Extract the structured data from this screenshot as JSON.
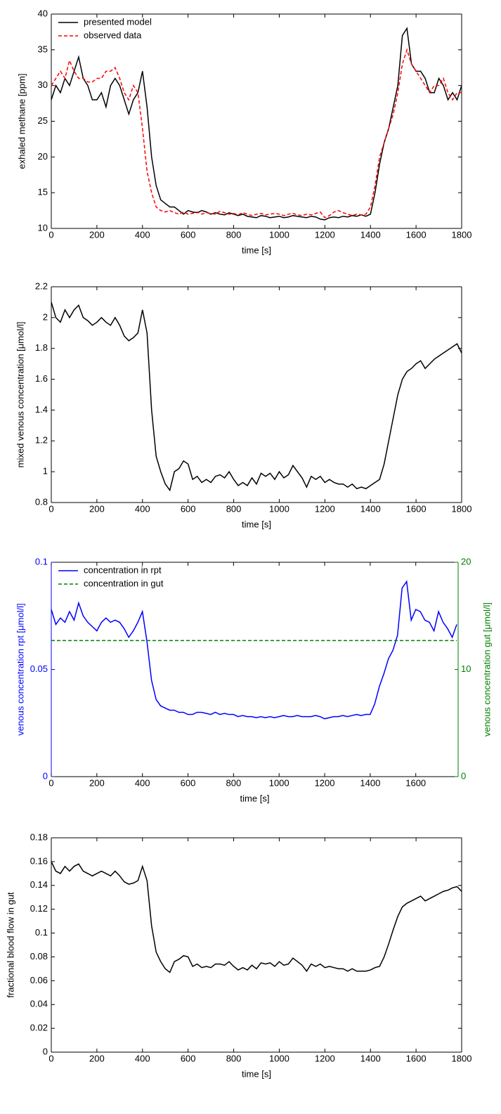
{
  "chart_data": [
    {
      "type": "line",
      "xlabel": "time [s]",
      "ylabel": "exhaled methane [ppm]",
      "legend": "upper left",
      "xlim": [
        0,
        1800
      ],
      "ylim": [
        10,
        40
      ],
      "xticks": [
        0,
        200,
        400,
        600,
        800,
        1000,
        1200,
        1400,
        1600,
        1800
      ],
      "yticks": [
        10,
        15,
        20,
        25,
        30,
        35,
        40
      ],
      "x": [
        0,
        20,
        40,
        60,
        80,
        100,
        120,
        140,
        160,
        180,
        200,
        220,
        240,
        260,
        280,
        300,
        320,
        340,
        360,
        380,
        400,
        420,
        440,
        460,
        480,
        500,
        520,
        540,
        560,
        580,
        600,
        620,
        640,
        660,
        680,
        700,
        720,
        740,
        760,
        780,
        800,
        820,
        840,
        860,
        880,
        900,
        920,
        940,
        960,
        980,
        1000,
        1020,
        1040,
        1060,
        1080,
        1100,
        1120,
        1140,
        1160,
        1180,
        1200,
        1220,
        1240,
        1260,
        1280,
        1300,
        1320,
        1340,
        1360,
        1380,
        1400,
        1420,
        1440,
        1460,
        1480,
        1500,
        1520,
        1540,
        1560,
        1580,
        1600,
        1620,
        1640,
        1660,
        1680,
        1700,
        1720,
        1740,
        1760,
        1780,
        1800
      ],
      "series": [
        {
          "name": "presented model",
          "color": "#000000",
          "linestyle": "solid",
          "values": [
            28,
            30,
            29,
            31,
            30,
            32,
            34,
            31,
            30,
            28,
            28,
            29,
            27,
            30,
            31,
            30,
            28,
            26,
            28,
            29,
            32,
            27,
            20,
            16,
            14,
            13.5,
            13,
            13,
            12.5,
            12,
            12.5,
            12.3,
            12.2,
            12.5,
            12.3,
            12,
            12.2,
            12,
            11.9,
            12.2,
            12,
            11.8,
            12,
            11.7,
            11.6,
            11.5,
            11.8,
            11.7,
            11.5,
            11.6,
            11.7,
            11.5,
            11.6,
            11.8,
            11.7,
            11.6,
            11.5,
            11.7,
            11.6,
            11.3,
            11.2,
            11.5,
            11.6,
            11.5,
            11.7,
            11.6,
            11.8,
            11.7,
            11.9,
            11.7,
            12,
            15,
            19,
            22,
            24,
            27,
            30,
            37,
            38,
            33,
            32,
            32,
            31,
            29,
            29,
            31,
            30,
            28,
            29,
            28,
            30
          ]
        },
        {
          "name": "observed data",
          "color": "#ff0000",
          "linestyle": "dashed",
          "values": [
            30,
            31,
            32,
            31,
            33.5,
            32,
            31,
            31,
            30.5,
            30.5,
            31,
            31,
            32,
            32,
            32.5,
            31,
            29,
            28,
            30,
            29,
            24,
            18,
            15,
            13,
            12.5,
            12.3,
            12.5,
            12.2,
            12,
            12.3,
            12,
            12.1,
            12.3,
            12,
            12.2,
            12.1,
            12,
            12.4,
            12.2,
            12,
            12.1,
            11.9,
            12.2,
            12,
            11.8,
            12,
            12.1,
            11.9,
            12,
            12.1,
            12,
            11.8,
            12,
            12.1,
            11.9,
            11.8,
            12,
            11.9,
            12.1,
            12.3,
            11.5,
            11.8,
            12.3,
            12.5,
            12.2,
            12,
            11.8,
            12,
            11.9,
            12,
            13,
            16,
            20,
            22,
            24,
            26,
            29,
            33,
            35,
            33,
            32,
            31,
            30,
            29,
            30,
            30,
            31,
            29,
            28,
            29,
            29
          ]
        }
      ]
    },
    {
      "type": "line",
      "xlabel": "time [s]",
      "ylabel": "mixed venous concentration [μmol/l]",
      "xlim": [
        0,
        1800
      ],
      "ylim": [
        0.8,
        2.2
      ],
      "xticks": [
        0,
        200,
        400,
        600,
        800,
        1000,
        1200,
        1400,
        1600,
        1800
      ],
      "yticks": [
        0.8,
        1,
        1.2,
        1.4,
        1.6,
        1.8,
        2,
        2.2
      ],
      "x": [
        0,
        20,
        40,
        60,
        80,
        100,
        120,
        140,
        160,
        180,
        200,
        220,
        240,
        260,
        280,
        300,
        320,
        340,
        360,
        380,
        400,
        420,
        440,
        460,
        480,
        500,
        520,
        540,
        560,
        580,
        600,
        620,
        640,
        660,
        680,
        700,
        720,
        740,
        760,
        780,
        800,
        820,
        840,
        860,
        880,
        900,
        920,
        940,
        960,
        980,
        1000,
        1020,
        1040,
        1060,
        1080,
        1100,
        1120,
        1140,
        1160,
        1180,
        1200,
        1220,
        1240,
        1260,
        1280,
        1300,
        1320,
        1340,
        1360,
        1380,
        1400,
        1420,
        1440,
        1460,
        1480,
        1500,
        1520,
        1540,
        1560,
        1580,
        1600,
        1620,
        1640,
        1660,
        1680,
        1700,
        1720,
        1740,
        1760,
        1780,
        1800
      ],
      "series": [
        {
          "color": "#000000",
          "linestyle": "solid",
          "values": [
            2.1,
            2.0,
            1.97,
            2.05,
            2.0,
            2.05,
            2.08,
            2.0,
            1.98,
            1.95,
            1.97,
            2.0,
            1.97,
            1.95,
            2.0,
            1.95,
            1.88,
            1.85,
            1.87,
            1.9,
            2.05,
            1.9,
            1.4,
            1.1,
            1.0,
            0.92,
            0.88,
            1.0,
            1.02,
            1.07,
            1.05,
            0.95,
            0.97,
            0.93,
            0.95,
            0.93,
            0.97,
            0.98,
            0.96,
            1.0,
            0.95,
            0.91,
            0.93,
            0.91,
            0.96,
            0.92,
            0.99,
            0.97,
            0.99,
            0.95,
            1.0,
            0.96,
            0.98,
            1.04,
            1.0,
            0.96,
            0.9,
            0.97,
            0.95,
            0.97,
            0.93,
            0.95,
            0.93,
            0.92,
            0.92,
            0.9,
            0.92,
            0.89,
            0.9,
            0.89,
            0.91,
            0.93,
            0.95,
            1.05,
            1.2,
            1.35,
            1.5,
            1.6,
            1.65,
            1.67,
            1.7,
            1.72,
            1.67,
            1.7,
            1.73,
            1.75,
            1.77,
            1.79,
            1.81,
            1.83,
            1.77
          ]
        }
      ]
    },
    {
      "type": "line",
      "xlabel": "time [s]",
      "ylabel": "venous concentration rpt [μmol/l]",
      "y2label": "venous concentration gut [μmol/l]",
      "legend": "upper left",
      "xlim": [
        0,
        1786
      ],
      "ylim": [
        0,
        0.1
      ],
      "y2lim": [
        0,
        20
      ],
      "xticks": [
        0,
        200,
        400,
        600,
        800,
        1000,
        1200,
        1400,
        1600
      ],
      "yticks": [
        0,
        0.05,
        0.1
      ],
      "y2ticks": [
        0,
        10,
        20
      ],
      "x": [
        0,
        20,
        40,
        60,
        80,
        100,
        120,
        140,
        160,
        180,
        200,
        220,
        240,
        260,
        280,
        300,
        320,
        340,
        360,
        380,
        400,
        420,
        440,
        460,
        480,
        500,
        520,
        540,
        560,
        580,
        600,
        620,
        640,
        660,
        680,
        700,
        720,
        740,
        760,
        780,
        800,
        820,
        840,
        860,
        880,
        900,
        920,
        940,
        960,
        980,
        1000,
        1020,
        1040,
        1060,
        1080,
        1100,
        1120,
        1140,
        1160,
        1180,
        1200,
        1220,
        1240,
        1260,
        1280,
        1300,
        1320,
        1340,
        1360,
        1380,
        1400,
        1420,
        1440,
        1460,
        1480,
        1500,
        1520,
        1540,
        1560,
        1580,
        1600,
        1620,
        1640,
        1660,
        1680,
        1700,
        1720,
        1740,
        1760,
        1780
      ],
      "series": [
        {
          "name": "concentration in rpt",
          "color": "#0000ff",
          "linestyle": "solid",
          "values": [
            0.078,
            0.071,
            0.074,
            0.072,
            0.077,
            0.073,
            0.081,
            0.075,
            0.072,
            0.07,
            0.068,
            0.072,
            0.074,
            0.072,
            0.073,
            0.072,
            0.069,
            0.065,
            0.068,
            0.072,
            0.077,
            0.063,
            0.045,
            0.036,
            0.033,
            0.032,
            0.031,
            0.031,
            0.03,
            0.03,
            0.029,
            0.029,
            0.03,
            0.03,
            0.0295,
            0.029,
            0.03,
            0.029,
            0.0295,
            0.029,
            0.029,
            0.028,
            0.0285,
            0.028,
            0.028,
            0.0275,
            0.028,
            0.0275,
            0.028,
            0.0275,
            0.028,
            0.0285,
            0.028,
            0.028,
            0.0285,
            0.028,
            0.028,
            0.028,
            0.0285,
            0.028,
            0.027,
            0.0275,
            0.028,
            0.028,
            0.0285,
            0.028,
            0.0285,
            0.029,
            0.0285,
            0.029,
            0.029,
            0.034,
            0.042,
            0.048,
            0.055,
            0.059,
            0.066,
            0.088,
            0.091,
            0.073,
            0.078,
            0.077,
            0.073,
            0.072,
            0.068,
            0.077,
            0.072,
            0.069,
            0.065,
            0.071
          ]
        },
        {
          "name": "concentration in gut",
          "color": "#008000",
          "linestyle": "dashed",
          "axis": "y2",
          "values": [
            12.7,
            12.7,
            12.7,
            12.7,
            12.7,
            12.7,
            12.7,
            12.7,
            12.7,
            12.7,
            12.7,
            12.7,
            12.7,
            12.7,
            12.7,
            12.7,
            12.7,
            12.7,
            12.7,
            12.7,
            12.7,
            12.7,
            12.7,
            12.7,
            12.7,
            12.7,
            12.7,
            12.7,
            12.7,
            12.7,
            12.7,
            12.7,
            12.7,
            12.7,
            12.7,
            12.7,
            12.7,
            12.7,
            12.7,
            12.7,
            12.7,
            12.7,
            12.7,
            12.7,
            12.7,
            12.7,
            12.7,
            12.7,
            12.7,
            12.7,
            12.7,
            12.7,
            12.7,
            12.7,
            12.7,
            12.7,
            12.7,
            12.7,
            12.7,
            12.7,
            12.7,
            12.7,
            12.7,
            12.7,
            12.7,
            12.7,
            12.7,
            12.7,
            12.7,
            12.7,
            12.7,
            12.7,
            12.7,
            12.7,
            12.7,
            12.7,
            12.7,
            12.7,
            12.7,
            12.7,
            12.7,
            12.7,
            12.7,
            12.7,
            12.7,
            12.7,
            12.7,
            12.7,
            12.7,
            12.7
          ]
        }
      ]
    },
    {
      "type": "line",
      "xlabel": "time [s]",
      "ylabel": "fractional blood flow in gut",
      "xlim": [
        0,
        1800
      ],
      "ylim": [
        0,
        0.18
      ],
      "xticks": [
        0,
        200,
        400,
        600,
        800,
        1000,
        1200,
        1400,
        1600,
        1800
      ],
      "yticks": [
        0,
        0.02,
        0.04,
        0.06,
        0.08,
        0.1,
        0.12,
        0.14,
        0.16,
        0.18
      ],
      "x": [
        0,
        20,
        40,
        60,
        80,
        100,
        120,
        140,
        160,
        180,
        200,
        220,
        240,
        260,
        280,
        300,
        320,
        340,
        360,
        380,
        400,
        420,
        440,
        460,
        480,
        500,
        520,
        540,
        560,
        580,
        600,
        620,
        640,
        660,
        680,
        700,
        720,
        740,
        760,
        780,
        800,
        820,
        840,
        860,
        880,
        900,
        920,
        940,
        960,
        980,
        1000,
        1020,
        1040,
        1060,
        1080,
        1100,
        1120,
        1140,
        1160,
        1180,
        1200,
        1220,
        1240,
        1260,
        1280,
        1300,
        1320,
        1340,
        1360,
        1380,
        1400,
        1420,
        1440,
        1460,
        1480,
        1500,
        1520,
        1540,
        1560,
        1580,
        1600,
        1620,
        1640,
        1660,
        1680,
        1700,
        1720,
        1740,
        1760,
        1780,
        1800
      ],
      "series": [
        {
          "color": "#000000",
          "linestyle": "solid",
          "values": [
            0.16,
            0.152,
            0.15,
            0.156,
            0.152,
            0.156,
            0.158,
            0.152,
            0.15,
            0.148,
            0.15,
            0.152,
            0.15,
            0.148,
            0.152,
            0.148,
            0.143,
            0.141,
            0.142,
            0.144,
            0.156,
            0.144,
            0.106,
            0.084,
            0.076,
            0.07,
            0.067,
            0.076,
            0.078,
            0.081,
            0.08,
            0.072,
            0.074,
            0.071,
            0.072,
            0.071,
            0.074,
            0.074,
            0.073,
            0.076,
            0.072,
            0.069,
            0.071,
            0.069,
            0.073,
            0.07,
            0.075,
            0.074,
            0.075,
            0.072,
            0.076,
            0.073,
            0.074,
            0.079,
            0.076,
            0.073,
            0.068,
            0.074,
            0.072,
            0.074,
            0.071,
            0.072,
            0.071,
            0.07,
            0.07,
            0.068,
            0.07,
            0.068,
            0.068,
            0.068,
            0.069,
            0.071,
            0.072,
            0.08,
            0.091,
            0.103,
            0.114,
            0.122,
            0.125,
            0.127,
            0.129,
            0.131,
            0.127,
            0.129,
            0.131,
            0.133,
            0.135,
            0.136,
            0.138,
            0.139,
            0.135
          ]
        }
      ]
    }
  ]
}
